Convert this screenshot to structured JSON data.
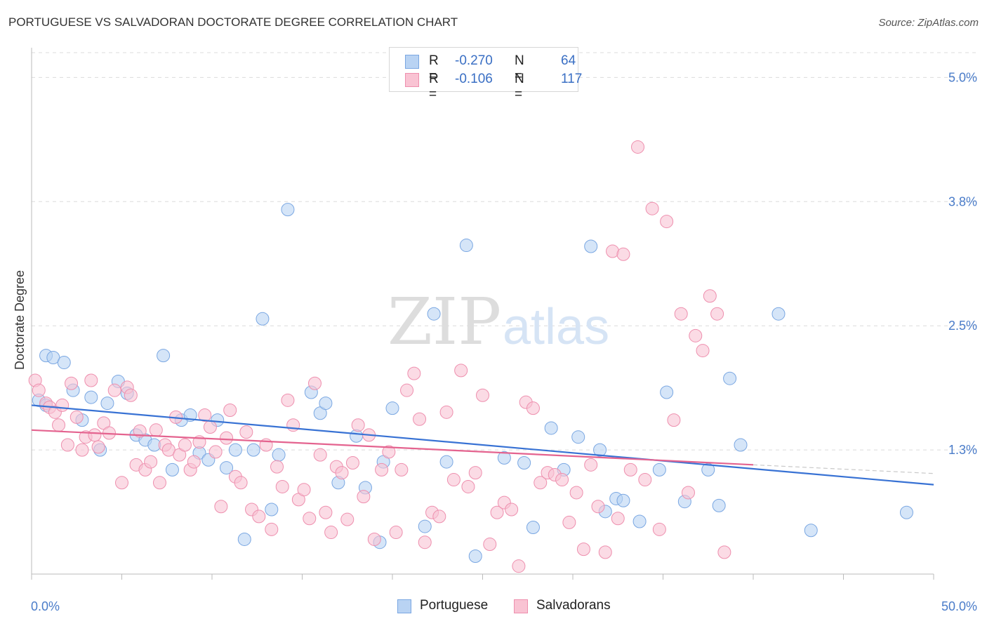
{
  "title": "PORTUGUESE VS SALVADORAN DOCTORATE DEGREE CORRELATION CHART",
  "source": "Source: ZipAtlas.com",
  "legend": {
    "rows": [
      {
        "r_label": "R =",
        "r_value": "-0.270",
        "n_label": "N =",
        "n_value": "64"
      },
      {
        "r_label": "R =",
        "r_value": "-0.106",
        "n_label": "N =",
        "n_value": "117"
      }
    ]
  },
  "bottom_legend": [
    "Portuguese",
    "Salvadorans"
  ],
  "watermark": {
    "zip": "ZIP",
    "atlas": "atlas"
  },
  "colors": {
    "portuguese_fill": "#b9d3f3",
    "portuguese_stroke": "#7aa7e2",
    "portuguese_line": "#3872d4",
    "salvadoran_fill": "#f9c3d3",
    "salvadoran_stroke": "#ee8fae",
    "salvadoran_line": "#e4638f",
    "tick_label": "#4a7cc9",
    "grid": "#dcdcdc"
  },
  "chart_data": {
    "type": "scatter",
    "title": "PORTUGUESE VS SALVADORAN DOCTORATE DEGREE CORRELATION CHART",
    "xlabel": "",
    "ylabel": "Doctorate Degree",
    "xlim": [
      0,
      50
    ],
    "ylim": [
      0,
      5.25
    ],
    "x_tick_labels": [
      {
        "value": 0,
        "label": "0.0%"
      },
      {
        "value": 50,
        "label": "50.0%"
      }
    ],
    "y_tick_labels": [
      {
        "value": 1.25,
        "label": "1.3%"
      },
      {
        "value": 2.5,
        "label": "2.5%"
      },
      {
        "value": 3.75,
        "label": "3.8%"
      },
      {
        "value": 5.0,
        "label": "5.0%"
      }
    ],
    "grid": true,
    "legend_position": "top-center",
    "series": [
      {
        "name": "Portuguese",
        "R": -0.27,
        "N": 64,
        "trend": {
          "x0": 0,
          "y0": 1.7,
          "x1": 50,
          "y1": 0.9
        },
        "points": [
          [
            0.4,
            1.75
          ],
          [
            0.8,
            1.7
          ],
          [
            0.8,
            2.2
          ],
          [
            1.2,
            2.18
          ],
          [
            1.8,
            2.13
          ],
          [
            2.3,
            1.85
          ],
          [
            2.8,
            1.55
          ],
          [
            3.3,
            1.78
          ],
          [
            3.8,
            1.25
          ],
          [
            4.2,
            1.72
          ],
          [
            4.8,
            1.94
          ],
          [
            5.3,
            1.82
          ],
          [
            5.8,
            1.4
          ],
          [
            6.3,
            1.35
          ],
          [
            6.8,
            1.3
          ],
          [
            7.3,
            2.2
          ],
          [
            7.8,
            1.05
          ],
          [
            8.3,
            1.55
          ],
          [
            8.8,
            1.6
          ],
          [
            9.3,
            1.22
          ],
          [
            9.8,
            1.15
          ],
          [
            10.3,
            1.55
          ],
          [
            10.8,
            1.07
          ],
          [
            11.3,
            1.25
          ],
          [
            11.8,
            0.35
          ],
          [
            12.3,
            1.25
          ],
          [
            12.8,
            2.57
          ],
          [
            13.3,
            0.65
          ],
          [
            13.7,
            1.2
          ],
          [
            14.2,
            3.67
          ],
          [
            15.5,
            1.83
          ],
          [
            16.0,
            1.62
          ],
          [
            16.3,
            1.72
          ],
          [
            17.0,
            0.92
          ],
          [
            18.0,
            1.39
          ],
          [
            18.5,
            0.87
          ],
          [
            19.3,
            0.32
          ],
          [
            19.5,
            1.13
          ],
          [
            20.0,
            1.67
          ],
          [
            21.8,
            0.48
          ],
          [
            22.3,
            2.62
          ],
          [
            23.0,
            1.13
          ],
          [
            24.1,
            3.31
          ],
          [
            24.6,
            0.18
          ],
          [
            26.2,
            1.17
          ],
          [
            27.3,
            1.12
          ],
          [
            27.8,
            0.47
          ],
          [
            28.8,
            1.47
          ],
          [
            29.5,
            1.05
          ],
          [
            30.3,
            1.38
          ],
          [
            31.0,
            3.3
          ],
          [
            31.5,
            1.25
          ],
          [
            31.8,
            0.63
          ],
          [
            32.4,
            0.76
          ],
          [
            32.8,
            0.74
          ],
          [
            33.7,
            0.53
          ],
          [
            34.8,
            1.05
          ],
          [
            35.2,
            1.83
          ],
          [
            36.2,
            0.73
          ],
          [
            37.5,
            1.05
          ],
          [
            38.1,
            0.69
          ],
          [
            38.7,
            1.97
          ],
          [
            39.3,
            1.3
          ],
          [
            41.4,
            2.62
          ],
          [
            43.2,
            0.44
          ],
          [
            48.5,
            0.62
          ]
        ]
      },
      {
        "name": "Salvadorans",
        "R": -0.106,
        "N": 117,
        "trend": {
          "x0": 0,
          "y0": 1.45,
          "x1": 40,
          "y1": 1.1
        },
        "points": [
          [
            0.2,
            1.95
          ],
          [
            0.4,
            1.85
          ],
          [
            0.8,
            1.72
          ],
          [
            1.0,
            1.68
          ],
          [
            1.3,
            1.63
          ],
          [
            1.5,
            1.5
          ],
          [
            1.7,
            1.7
          ],
          [
            2.0,
            1.3
          ],
          [
            2.2,
            1.92
          ],
          [
            2.5,
            1.58
          ],
          [
            2.8,
            1.25
          ],
          [
            3.0,
            1.38
          ],
          [
            3.3,
            1.95
          ],
          [
            3.5,
            1.4
          ],
          [
            3.7,
            1.28
          ],
          [
            4.0,
            1.52
          ],
          [
            4.3,
            1.42
          ],
          [
            4.6,
            1.85
          ],
          [
            5.0,
            0.92
          ],
          [
            5.3,
            1.88
          ],
          [
            5.5,
            1.8
          ],
          [
            5.8,
            1.1
          ],
          [
            6.0,
            1.44
          ],
          [
            6.3,
            1.05
          ],
          [
            6.6,
            1.13
          ],
          [
            6.9,
            1.45
          ],
          [
            7.1,
            0.92
          ],
          [
            7.4,
            1.3
          ],
          [
            7.6,
            1.25
          ],
          [
            8.0,
            1.58
          ],
          [
            8.2,
            1.2
          ],
          [
            8.5,
            1.3
          ],
          [
            8.8,
            1.05
          ],
          [
            9.0,
            1.13
          ],
          [
            9.3,
            1.33
          ],
          [
            9.6,
            1.6
          ],
          [
            9.9,
            1.48
          ],
          [
            10.2,
            1.23
          ],
          [
            10.5,
            0.68
          ],
          [
            10.8,
            1.37
          ],
          [
            11.0,
            1.65
          ],
          [
            11.3,
            0.98
          ],
          [
            11.6,
            0.92
          ],
          [
            11.9,
            1.43
          ],
          [
            12.2,
            0.65
          ],
          [
            12.6,
            0.58
          ],
          [
            13.0,
            1.3
          ],
          [
            13.3,
            0.45
          ],
          [
            13.6,
            1.08
          ],
          [
            13.9,
            0.88
          ],
          [
            14.2,
            1.75
          ],
          [
            14.5,
            1.5
          ],
          [
            14.8,
            0.75
          ],
          [
            15.1,
            0.85
          ],
          [
            15.4,
            0.56
          ],
          [
            15.7,
            1.92
          ],
          [
            16.0,
            1.2
          ],
          [
            16.3,
            0.62
          ],
          [
            16.6,
            0.42
          ],
          [
            16.9,
            1.08
          ],
          [
            17.2,
            1.02
          ],
          [
            17.5,
            0.55
          ],
          [
            17.8,
            1.12
          ],
          [
            18.1,
            1.5
          ],
          [
            18.4,
            0.78
          ],
          [
            18.7,
            1.4
          ],
          [
            19.0,
            0.35
          ],
          [
            19.4,
            1.05
          ],
          [
            19.8,
            1.23
          ],
          [
            20.2,
            0.42
          ],
          [
            20.5,
            1.05
          ],
          [
            20.8,
            1.85
          ],
          [
            21.2,
            2.02
          ],
          [
            21.5,
            1.56
          ],
          [
            21.8,
            0.32
          ],
          [
            22.2,
            0.62
          ],
          [
            22.6,
            0.58
          ],
          [
            23.0,
            1.63
          ],
          [
            23.4,
            0.95
          ],
          [
            23.8,
            2.05
          ],
          [
            24.2,
            0.88
          ],
          [
            24.6,
            1.02
          ],
          [
            25.0,
            1.8
          ],
          [
            25.4,
            0.3
          ],
          [
            25.8,
            0.62
          ],
          [
            26.2,
            0.72
          ],
          [
            26.6,
            0.65
          ],
          [
            27.0,
            0.08
          ],
          [
            27.4,
            1.73
          ],
          [
            27.8,
            1.67
          ],
          [
            28.2,
            0.92
          ],
          [
            28.6,
            1.02
          ],
          [
            29.0,
            1.0
          ],
          [
            29.4,
            0.95
          ],
          [
            29.8,
            0.52
          ],
          [
            30.2,
            0.82
          ],
          [
            30.6,
            0.25
          ],
          [
            31.0,
            1.1
          ],
          [
            31.4,
            0.68
          ],
          [
            31.8,
            0.22
          ],
          [
            32.2,
            3.25
          ],
          [
            32.5,
            0.56
          ],
          [
            32.8,
            3.22
          ],
          [
            33.2,
            1.05
          ],
          [
            33.6,
            4.3
          ],
          [
            34.0,
            0.95
          ],
          [
            34.4,
            3.68
          ],
          [
            34.8,
            0.45
          ],
          [
            35.2,
            3.55
          ],
          [
            35.6,
            1.55
          ],
          [
            36.0,
            2.62
          ],
          [
            36.4,
            0.82
          ],
          [
            36.8,
            2.4
          ],
          [
            37.2,
            2.25
          ],
          [
            37.6,
            2.8
          ],
          [
            38.0,
            2.62
          ],
          [
            38.4,
            0.22
          ]
        ]
      }
    ]
  }
}
